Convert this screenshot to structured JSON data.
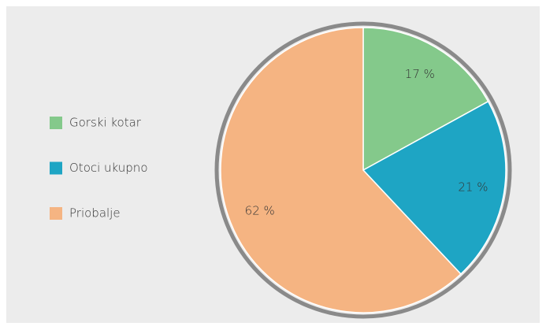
{
  "chart_data": {
    "type": "pie",
    "categories": [
      "Gorski kotar",
      "Otoci ukupno",
      "Priobalje"
    ],
    "values": [
      17,
      21,
      62
    ],
    "value_labels": [
      "17 %",
      "21 %",
      "62 %"
    ],
    "colors": [
      "#84c98b",
      "#1ea5c4",
      "#f5b482"
    ],
    "legend": "left"
  }
}
